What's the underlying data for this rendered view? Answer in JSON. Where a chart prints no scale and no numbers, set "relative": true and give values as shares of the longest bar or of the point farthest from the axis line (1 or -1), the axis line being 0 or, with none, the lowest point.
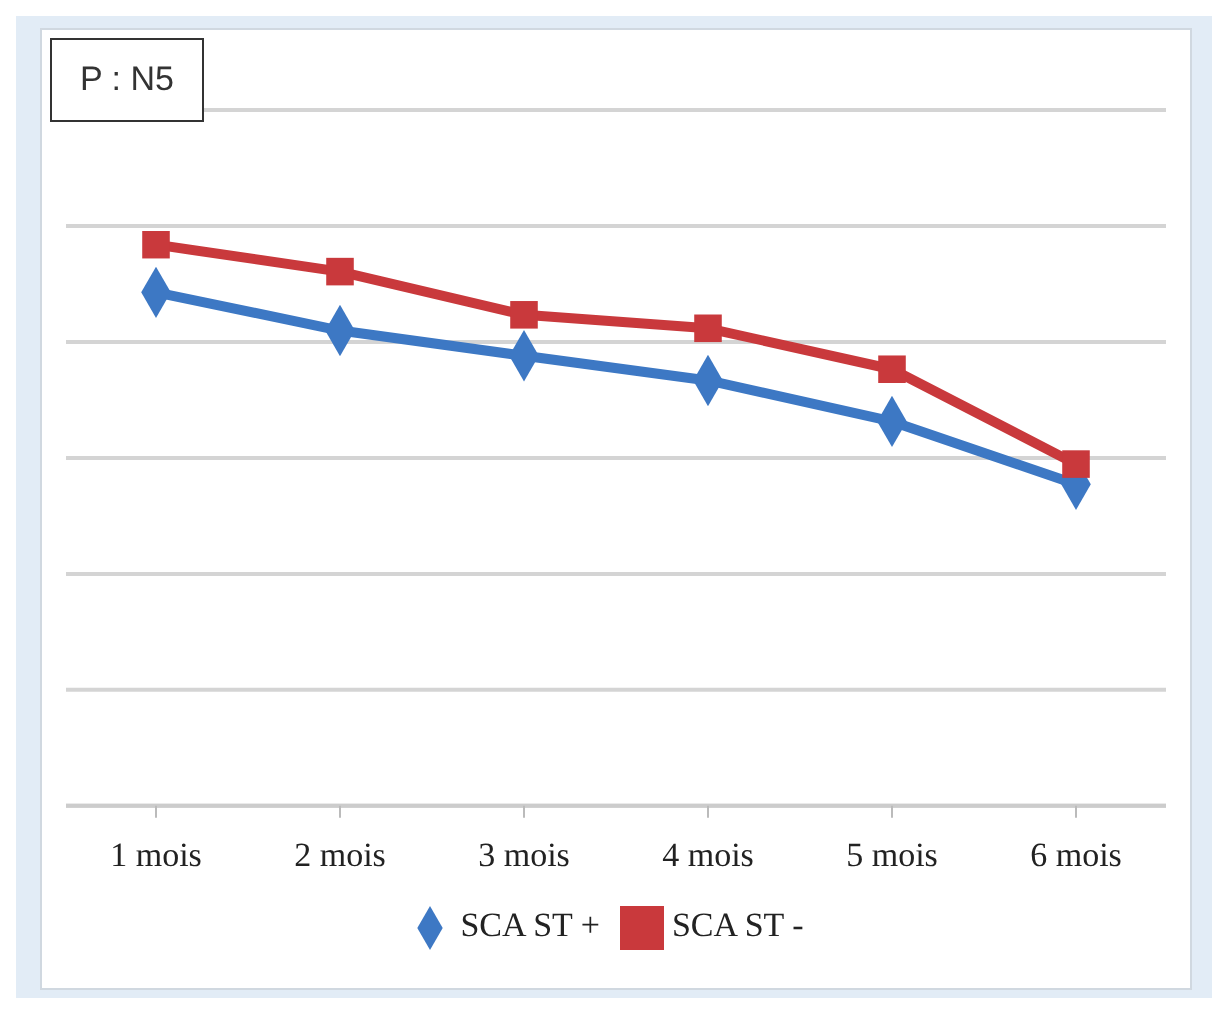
{
  "chart_data": {
    "type": "line",
    "title": "P : N5",
    "relative": true,
    "grid": "y",
    "legend": "bottom",
    "categories": [
      "1 mois",
      "2 mois",
      "3 mois",
      "4 mois",
      "5 mois",
      "6 mois"
    ],
    "series": [
      {
        "name": "SCA ST +",
        "color": "#3d78c4",
        "marker": "diamond",
        "values": [
          0.915,
          0.847,
          0.802,
          0.758,
          0.685,
          0.573
        ]
      },
      {
        "name": "SCA ST -",
        "color": "#c9393c",
        "marker": "square",
        "values": [
          1,
          0.952,
          0.875,
          0.851,
          0.778,
          0.609
        ]
      }
    ]
  }
}
